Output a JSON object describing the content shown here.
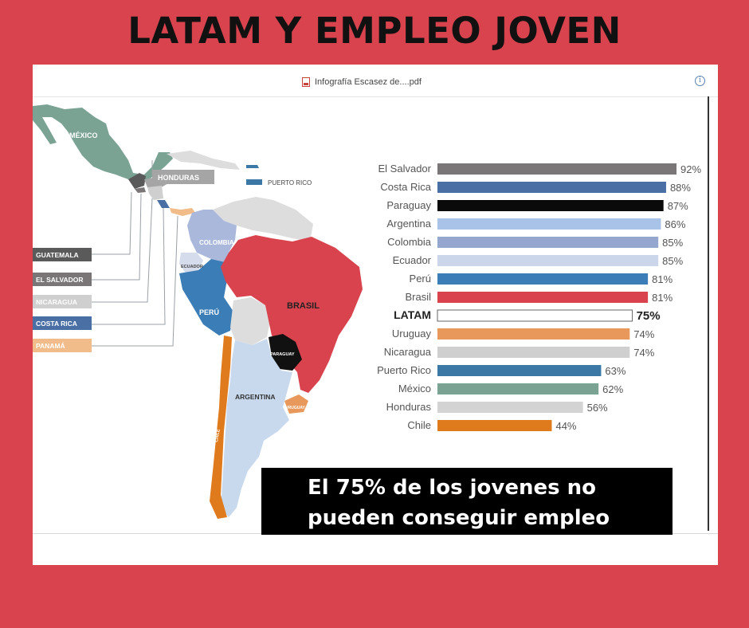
{
  "header": {
    "title": "LATAM Y EMPLEO JOVEN"
  },
  "viewer": {
    "file_name": "Infografía Escasez de....pdf",
    "info_icon": "info-icon"
  },
  "map": {
    "labels": {
      "mexico": "MÉXICO",
      "honduras": "HONDURAS",
      "puerto_rico": "PUERTO RICO",
      "guatemala": "GUATEMALA",
      "el_salvador": "EL SALVADOR",
      "nicaragua": "NICARAGUA",
      "costa_rica": "COSTA RICA",
      "panama": "PANAMÁ",
      "colombia": "COLOMBIA",
      "ecuador": "ECUADOR",
      "peru": "PERÚ",
      "brasil": "BRASIL",
      "paraguay": "PARAGUAY",
      "argentina": "ARGENTINA",
      "uruguay": "URUGUAY",
      "chile": "CHILE"
    },
    "colors": {
      "mexico": "#7aa394",
      "honduras": "#a5a5a5",
      "puerto_rico": "#3b78a6",
      "guatemala": "#5a5a5a",
      "el_salvador": "#7a7577",
      "nicaragua": "#cfcfcf",
      "costa_rica": "#4a6fa5",
      "panama": "#f2bb8a",
      "colombia": "#aab8dc",
      "ecuador": "#d5dcec",
      "peru": "#3b7db6",
      "brasil": "#d9434e",
      "paraguay": "#111111",
      "argentina": "#c8d9ee",
      "uruguay": "#e8985a",
      "chile": "#e07b1d",
      "other": "#dddddd"
    }
  },
  "chart_data": {
    "type": "bar",
    "orientation": "horizontal",
    "categories": [
      "El Salvador",
      "Costa Rica",
      "Paraguay",
      "Argentina",
      "Colombia",
      "Ecuador",
      "Perú",
      "Brasil",
      "LATAM",
      "Uruguay",
      "Nicaragua",
      "Puerto Rico",
      "México",
      "Honduras",
      "Chile"
    ],
    "values": [
      92,
      88,
      87,
      86,
      85,
      85,
      81,
      81,
      75,
      74,
      74,
      63,
      62,
      56,
      44
    ],
    "value_labels": [
      "92%",
      "88%",
      "87%",
      "86%",
      "85%",
      "85%",
      "81%",
      "81%",
      "75%",
      "74%",
      "74%",
      "63%",
      "62%",
      "56%",
      "44%"
    ],
    "colors": [
      "#7a7577",
      "#4a6fa5",
      "#0a0a0a",
      "#a9c3e8",
      "#96a7cf",
      "#cbd6ea",
      "#3b7db6",
      "#d9434e",
      "#ffffff",
      "#e8985a",
      "#cfcfcf",
      "#3b78a6",
      "#7aa394",
      "#d3d3d3",
      "#e07b1d"
    ],
    "highlight": "LATAM"
  },
  "caption": {
    "line1": "El 75% de los jovenes no",
    "line2": "pueden conseguir empleo"
  }
}
